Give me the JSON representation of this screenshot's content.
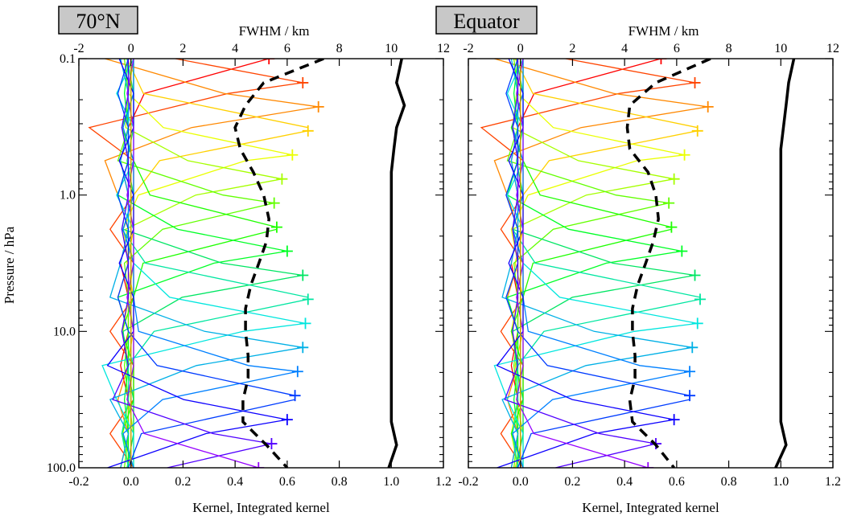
{
  "chart_data": {
    "type": "line",
    "y_axis": {
      "label": "Pressure / hPa",
      "scale": "log",
      "range": [
        100.0,
        0.1
      ],
      "ticks": [
        0.1,
        1.0,
        10.0,
        100.0
      ],
      "tick_labels": [
        "0.1",
        "1.0",
        "10.0",
        "100.0"
      ]
    },
    "x_axis_bottom": {
      "label": "Kernel, Integrated kernel",
      "range": [
        -0.2,
        1.2
      ],
      "ticks": [
        -0.2,
        0.0,
        0.2,
        0.4,
        0.6,
        0.8,
        1.0,
        1.2
      ],
      "tick_labels": [
        "-0.2",
        "0.0",
        "0.2",
        "0.4",
        "0.6",
        "0.8",
        "1.0",
        "1.2"
      ]
    },
    "x_axis_top": {
      "label": "FWHM / km",
      "range": [
        -2,
        12
      ],
      "ticks": [
        -2,
        0,
        2,
        4,
        6,
        8,
        10,
        12
      ],
      "tick_labels": [
        "-2",
        "0",
        "2",
        "4",
        "6",
        "8",
        "10",
        "12"
      ]
    },
    "kernel_levels_hPa": [
      0.1,
      0.18,
      0.32,
      0.56,
      1.0,
      1.78,
      3.16,
      5.62,
      10.0,
      17.8,
      31.6,
      56.2,
      100.0
    ],
    "panels": [
      {
        "title": "70°N",
        "kernel_peaks": [
          0.53,
          0.66,
          0.72,
          0.68,
          0.62,
          0.58,
          0.55,
          0.56,
          0.6,
          0.66,
          0.68,
          0.67,
          0.66,
          0.64,
          0.63,
          0.6,
          0.54,
          0.49
        ],
        "kernel_neg_troughs": [
          -0.08,
          -0.16,
          -0.1,
          -0.03,
          -0.06,
          -0.02,
          -0.05,
          -0.07,
          -0.05,
          -0.03,
          -0.07,
          -0.11,
          -0.08,
          -0.06,
          -0.1,
          -0.09,
          -0.07,
          -0.03
        ],
        "fwhm_dashed": {
          "name": "FWHM",
          "pressure": [
            0.1,
            0.15,
            0.22,
            0.32,
            0.46,
            0.68,
            1.0,
            1.5,
            2.2,
            3.2,
            4.6,
            6.8,
            10.0,
            15,
            22,
            32,
            46,
            68,
            100
          ],
          "values": [
            7.4,
            5.1,
            4.4,
            4.0,
            4.2,
            4.7,
            5.1,
            5.3,
            5.2,
            4.9,
            4.6,
            4.4,
            4.4,
            4.5,
            4.5,
            4.3,
            4.3,
            5.2,
            6.0
          ]
        },
        "integrated_solid": {
          "name": "Integrated kernel",
          "pressure": [
            0.1,
            0.15,
            0.22,
            0.32,
            0.46,
            0.68,
            1.0,
            1.5,
            2.2,
            3.2,
            4.6,
            6.8,
            10.0,
            15,
            22,
            32,
            46,
            68,
            100
          ],
          "values": [
            1.04,
            1.02,
            1.05,
            1.02,
            1.01,
            1.0,
            1.0,
            1.0,
            1.0,
            1.0,
            1.0,
            1.0,
            1.0,
            1.0,
            1.0,
            1.0,
            1.0,
            1.02,
            0.99
          ]
        }
      },
      {
        "title": "Equator",
        "kernel_peaks": [
          0.54,
          0.67,
          0.72,
          0.68,
          0.63,
          0.59,
          0.57,
          0.58,
          0.62,
          0.67,
          0.69,
          0.68,
          0.66,
          0.65,
          0.65,
          0.59,
          0.52,
          0.49
        ],
        "kernel_neg_troughs": [
          -0.07,
          -0.15,
          -0.1,
          -0.04,
          -0.07,
          -0.03,
          -0.05,
          -0.07,
          -0.05,
          -0.03,
          -0.06,
          -0.1,
          -0.07,
          -0.06,
          -0.11,
          -0.09,
          -0.06,
          -0.03
        ],
        "fwhm_dashed": {
          "name": "FWHM",
          "pressure": [
            0.1,
            0.15,
            0.22,
            0.32,
            0.46,
            0.68,
            1.0,
            1.5,
            2.2,
            3.2,
            4.6,
            6.8,
            10.0,
            15,
            22,
            32,
            46,
            68,
            100
          ],
          "values": [
            7.3,
            5.2,
            4.2,
            4.1,
            4.2,
            4.9,
            5.2,
            5.3,
            5.1,
            4.8,
            4.5,
            4.3,
            4.3,
            4.4,
            4.4,
            4.2,
            4.3,
            5.2,
            5.9
          ]
        },
        "integrated_solid": {
          "name": "Integrated kernel",
          "pressure": [
            0.1,
            0.15,
            0.22,
            0.32,
            0.46,
            0.68,
            1.0,
            1.5,
            2.2,
            3.2,
            4.6,
            6.8,
            10.0,
            15,
            22,
            32,
            46,
            68,
            100
          ],
          "values": [
            1.05,
            1.03,
            1.02,
            1.01,
            1.0,
            1.0,
            1.0,
            1.0,
            1.0,
            1.0,
            1.0,
            1.0,
            1.0,
            1.0,
            1.0,
            1.0,
            1.0,
            1.02,
            0.98
          ]
        }
      }
    ]
  }
}
